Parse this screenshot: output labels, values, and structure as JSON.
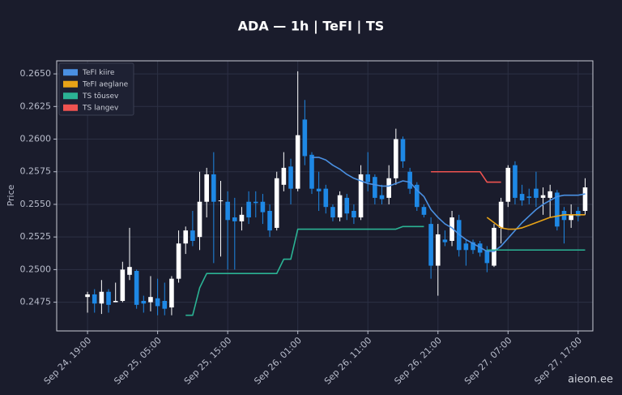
{
  "chart_data": {
    "type": "candlestick",
    "title": "ADA — 1h  |  TeFI  |  TS",
    "y_label": "Price",
    "watermark": "aieon.ee",
    "up_color": "#ffffff",
    "down_color": "#1e88e5",
    "grid": true,
    "legend": "upper left",
    "xlim": [
      -4.4,
      72.1
    ],
    "ylim": [
      0.2453,
      0.266
    ],
    "xticks": [
      {
        "value": 0,
        "label": "Sep 24, 19:00"
      },
      {
        "value": 10,
        "label": "Sep 25, 05:00"
      },
      {
        "value": 20,
        "label": "Sep 25, 15:00"
      },
      {
        "value": 30,
        "label": "Sep 26, 01:00"
      },
      {
        "value": 40,
        "label": "Sep 26, 11:00"
      },
      {
        "value": 50,
        "label": "Sep 26, 21:00"
      },
      {
        "value": 60,
        "label": "Sep 27, 07:00"
      },
      {
        "value": 70,
        "label": "Sep 27, 17:00"
      }
    ],
    "yticks": [
      0.2475,
      {
        "value": 0.25,
        "label": "0.2500"
      },
      0.2525,
      {
        "value": 0.255,
        "label": "0.2550"
      },
      0.2575,
      {
        "value": 0.26,
        "label": "0.2600"
      },
      0.2625,
      {
        "value": 0.265,
        "label": "0.2650"
      }
    ],
    "ohlc": {
      "open": [
        0.2479,
        0.2481,
        0.2474,
        0.2483,
        0.2475,
        0.2476,
        0.2496,
        0.2499,
        0.2476,
        0.2475,
        0.2478,
        0.2476,
        0.2471,
        0.2493,
        0.252,
        0.253,
        0.2525,
        0.2552,
        0.2573,
        0.2553,
        0.2552,
        0.254,
        0.2537,
        0.2552,
        0.2552,
        0.2552,
        0.2545,
        0.2532,
        0.2565,
        0.2579,
        0.2562,
        0.2615,
        0.2588,
        0.2562,
        0.2562,
        0.2548,
        0.254,
        0.2555,
        0.2545,
        0.254,
        0.2573,
        0.2571,
        0.2557,
        0.2555,
        0.257,
        0.26,
        0.2575,
        0.2565,
        0.2548,
        0.2535,
        0.2503,
        0.2523,
        0.2522,
        0.2538,
        0.252,
        0.2521,
        0.252,
        0.2515,
        0.2503,
        0.2532,
        0.2552,
        0.258,
        0.2558,
        0.2556,
        0.2562,
        0.2555,
        0.2555,
        0.2559,
        0.2545,
        0.2538,
        0.2545,
        0.2545
      ],
      "high": [
        0.2483,
        0.2485,
        0.2492,
        0.2485,
        0.249,
        0.2506,
        0.2532,
        0.25,
        0.248,
        0.2495,
        0.2493,
        0.249,
        0.2495,
        0.253,
        0.2533,
        0.2545,
        0.2575,
        0.2578,
        0.259,
        0.2568,
        0.256,
        0.2555,
        0.2548,
        0.256,
        0.256,
        0.2558,
        0.255,
        0.2575,
        0.259,
        0.2585,
        0.2652,
        0.263,
        0.259,
        0.2575,
        0.2565,
        0.255,
        0.256,
        0.2558,
        0.255,
        0.258,
        0.259,
        0.2573,
        0.2565,
        0.258,
        0.2608,
        0.2602,
        0.2578,
        0.2567,
        0.255,
        0.254,
        0.2535,
        0.253,
        0.2545,
        0.2542,
        0.2523,
        0.2523,
        0.2522,
        0.2518,
        0.2535,
        0.2555,
        0.258,
        0.2583,
        0.2565,
        0.2562,
        0.2575,
        0.2563,
        0.2565,
        0.2561,
        0.2548,
        0.255,
        0.2548,
        0.257
      ],
      "low": [
        0.2467,
        0.2467,
        0.2466,
        0.2467,
        0.2475,
        0.2475,
        0.2492,
        0.247,
        0.2467,
        0.2468,
        0.2465,
        0.2465,
        0.2465,
        0.249,
        0.2512,
        0.2518,
        0.2515,
        0.254,
        0.2505,
        0.251,
        0.25,
        0.25,
        0.253,
        0.2535,
        0.254,
        0.2535,
        0.2525,
        0.253,
        0.256,
        0.255,
        0.256,
        0.258,
        0.2558,
        0.2545,
        0.2543,
        0.2537,
        0.2537,
        0.2538,
        0.2535,
        0.2538,
        0.256,
        0.255,
        0.255,
        0.255,
        0.2565,
        0.2578,
        0.2558,
        0.2545,
        0.254,
        0.2493,
        0.248,
        0.2518,
        0.2518,
        0.251,
        0.2503,
        0.2512,
        0.251,
        0.2498,
        0.2502,
        0.252,
        0.2548,
        0.255,
        0.2549,
        0.255,
        0.2548,
        0.2542,
        0.254,
        0.253,
        0.252,
        0.2532,
        0.2537,
        0.2542
      ],
      "close": [
        0.2481,
        0.2474,
        0.2483,
        0.2473,
        0.2476,
        0.25,
        0.2502,
        0.2473,
        0.2474,
        0.2479,
        0.2472,
        0.247,
        0.2493,
        0.252,
        0.253,
        0.2522,
        0.2552,
        0.2573,
        0.2552,
        0.2553,
        0.2538,
        0.2537,
        0.2542,
        0.254,
        0.2551,
        0.2544,
        0.253,
        0.257,
        0.2578,
        0.2562,
        0.2603,
        0.2587,
        0.2562,
        0.256,
        0.2548,
        0.254,
        0.2557,
        0.2543,
        0.254,
        0.2573,
        0.2567,
        0.2555,
        0.2554,
        0.257,
        0.26,
        0.2583,
        0.2562,
        0.2548,
        0.2542,
        0.2503,
        0.2527,
        0.2521,
        0.254,
        0.2515,
        0.2515,
        0.2515,
        0.2513,
        0.2505,
        0.2532,
        0.2552,
        0.2578,
        0.2555,
        0.2553,
        0.2555,
        0.2555,
        0.2557,
        0.256,
        0.2533,
        0.2538,
        0.2542,
        0.2541,
        0.2563
      ]
    },
    "lines": [
      {
        "name": "TeFI kiire",
        "color": "#4a90e2",
        "values": [
          null,
          null,
          null,
          null,
          null,
          null,
          null,
          null,
          null,
          null,
          null,
          null,
          null,
          null,
          null,
          null,
          null,
          null,
          null,
          null,
          null,
          null,
          null,
          null,
          null,
          null,
          null,
          null,
          null,
          null,
          null,
          null,
          0.2586,
          0.2586,
          0.2584,
          0.258,
          0.2577,
          0.2573,
          0.257,
          0.2568,
          0.2566,
          0.2565,
          0.2564,
          0.2564,
          0.2566,
          0.2568,
          0.2567,
          0.2561,
          0.2556,
          0.2546,
          0.254,
          0.2535,
          0.2532,
          0.2527,
          0.2523,
          0.252,
          0.2517,
          0.2514,
          0.2514,
          0.2518,
          0.2524,
          0.253,
          0.2536,
          0.2541,
          0.2546,
          0.255,
          0.2553,
          0.2556,
          0.2557,
          0.2557,
          0.2557,
          0.2558
        ]
      },
      {
        "name": "TeFI aeglane",
        "color": "#e8a317",
        "values": [
          null,
          null,
          null,
          null,
          null,
          null,
          null,
          null,
          null,
          null,
          null,
          null,
          null,
          null,
          null,
          null,
          null,
          null,
          null,
          null,
          null,
          null,
          null,
          null,
          null,
          null,
          null,
          null,
          null,
          null,
          null,
          null,
          null,
          null,
          null,
          null,
          null,
          null,
          null,
          null,
          null,
          null,
          null,
          null,
          null,
          null,
          null,
          null,
          null,
          null,
          null,
          null,
          null,
          null,
          null,
          null,
          null,
          0.254,
          0.2536,
          0.2532,
          0.2531,
          0.2531,
          0.2532,
          0.2534,
          0.2536,
          0.2538,
          0.254,
          0.2541,
          0.2542,
          0.2542,
          0.2542,
          0.2542
        ]
      },
      {
        "name": "TS tõusev",
        "color": "#2bb394",
        "values": [
          null,
          null,
          null,
          null,
          null,
          null,
          null,
          null,
          null,
          null,
          null,
          null,
          null,
          null,
          0.2465,
          0.2465,
          0.2486,
          0.2497,
          0.2497,
          0.2497,
          0.2497,
          0.2497,
          0.2497,
          0.2497,
          0.2497,
          0.2497,
          0.2497,
          0.2497,
          0.2508,
          0.2508,
          0.2531,
          0.2531,
          0.2531,
          0.2531,
          0.2531,
          0.2531,
          0.2531,
          0.2531,
          0.2531,
          0.2531,
          0.2531,
          0.2531,
          0.2531,
          0.2531,
          0.2531,
          0.2533,
          0.2533,
          0.2533,
          0.2533,
          null,
          null,
          null,
          null,
          null,
          null,
          null,
          null,
          0.2515,
          0.2515,
          0.2515,
          0.2515,
          0.2515,
          0.2515,
          0.2515,
          0.2515,
          0.2515,
          0.2515,
          0.2515,
          0.2515,
          0.2515,
          0.2515,
          0.2515
        ]
      },
      {
        "name": "TS langev",
        "color": "#ef5350",
        "values": [
          null,
          null,
          null,
          null,
          null,
          null,
          null,
          null,
          null,
          null,
          null,
          null,
          null,
          null,
          null,
          null,
          null,
          null,
          null,
          null,
          null,
          null,
          null,
          null,
          null,
          null,
          null,
          null,
          null,
          null,
          null,
          null,
          null,
          null,
          null,
          null,
          null,
          null,
          null,
          null,
          null,
          null,
          null,
          null,
          null,
          null,
          null,
          null,
          null,
          0.2575,
          0.2575,
          0.2575,
          0.2575,
          0.2575,
          0.2575,
          0.2575,
          0.2575,
          0.2567,
          0.2567,
          0.2567,
          null,
          null,
          null,
          null,
          null,
          null,
          null,
          null,
          null,
          null,
          null,
          null
        ]
      }
    ]
  }
}
